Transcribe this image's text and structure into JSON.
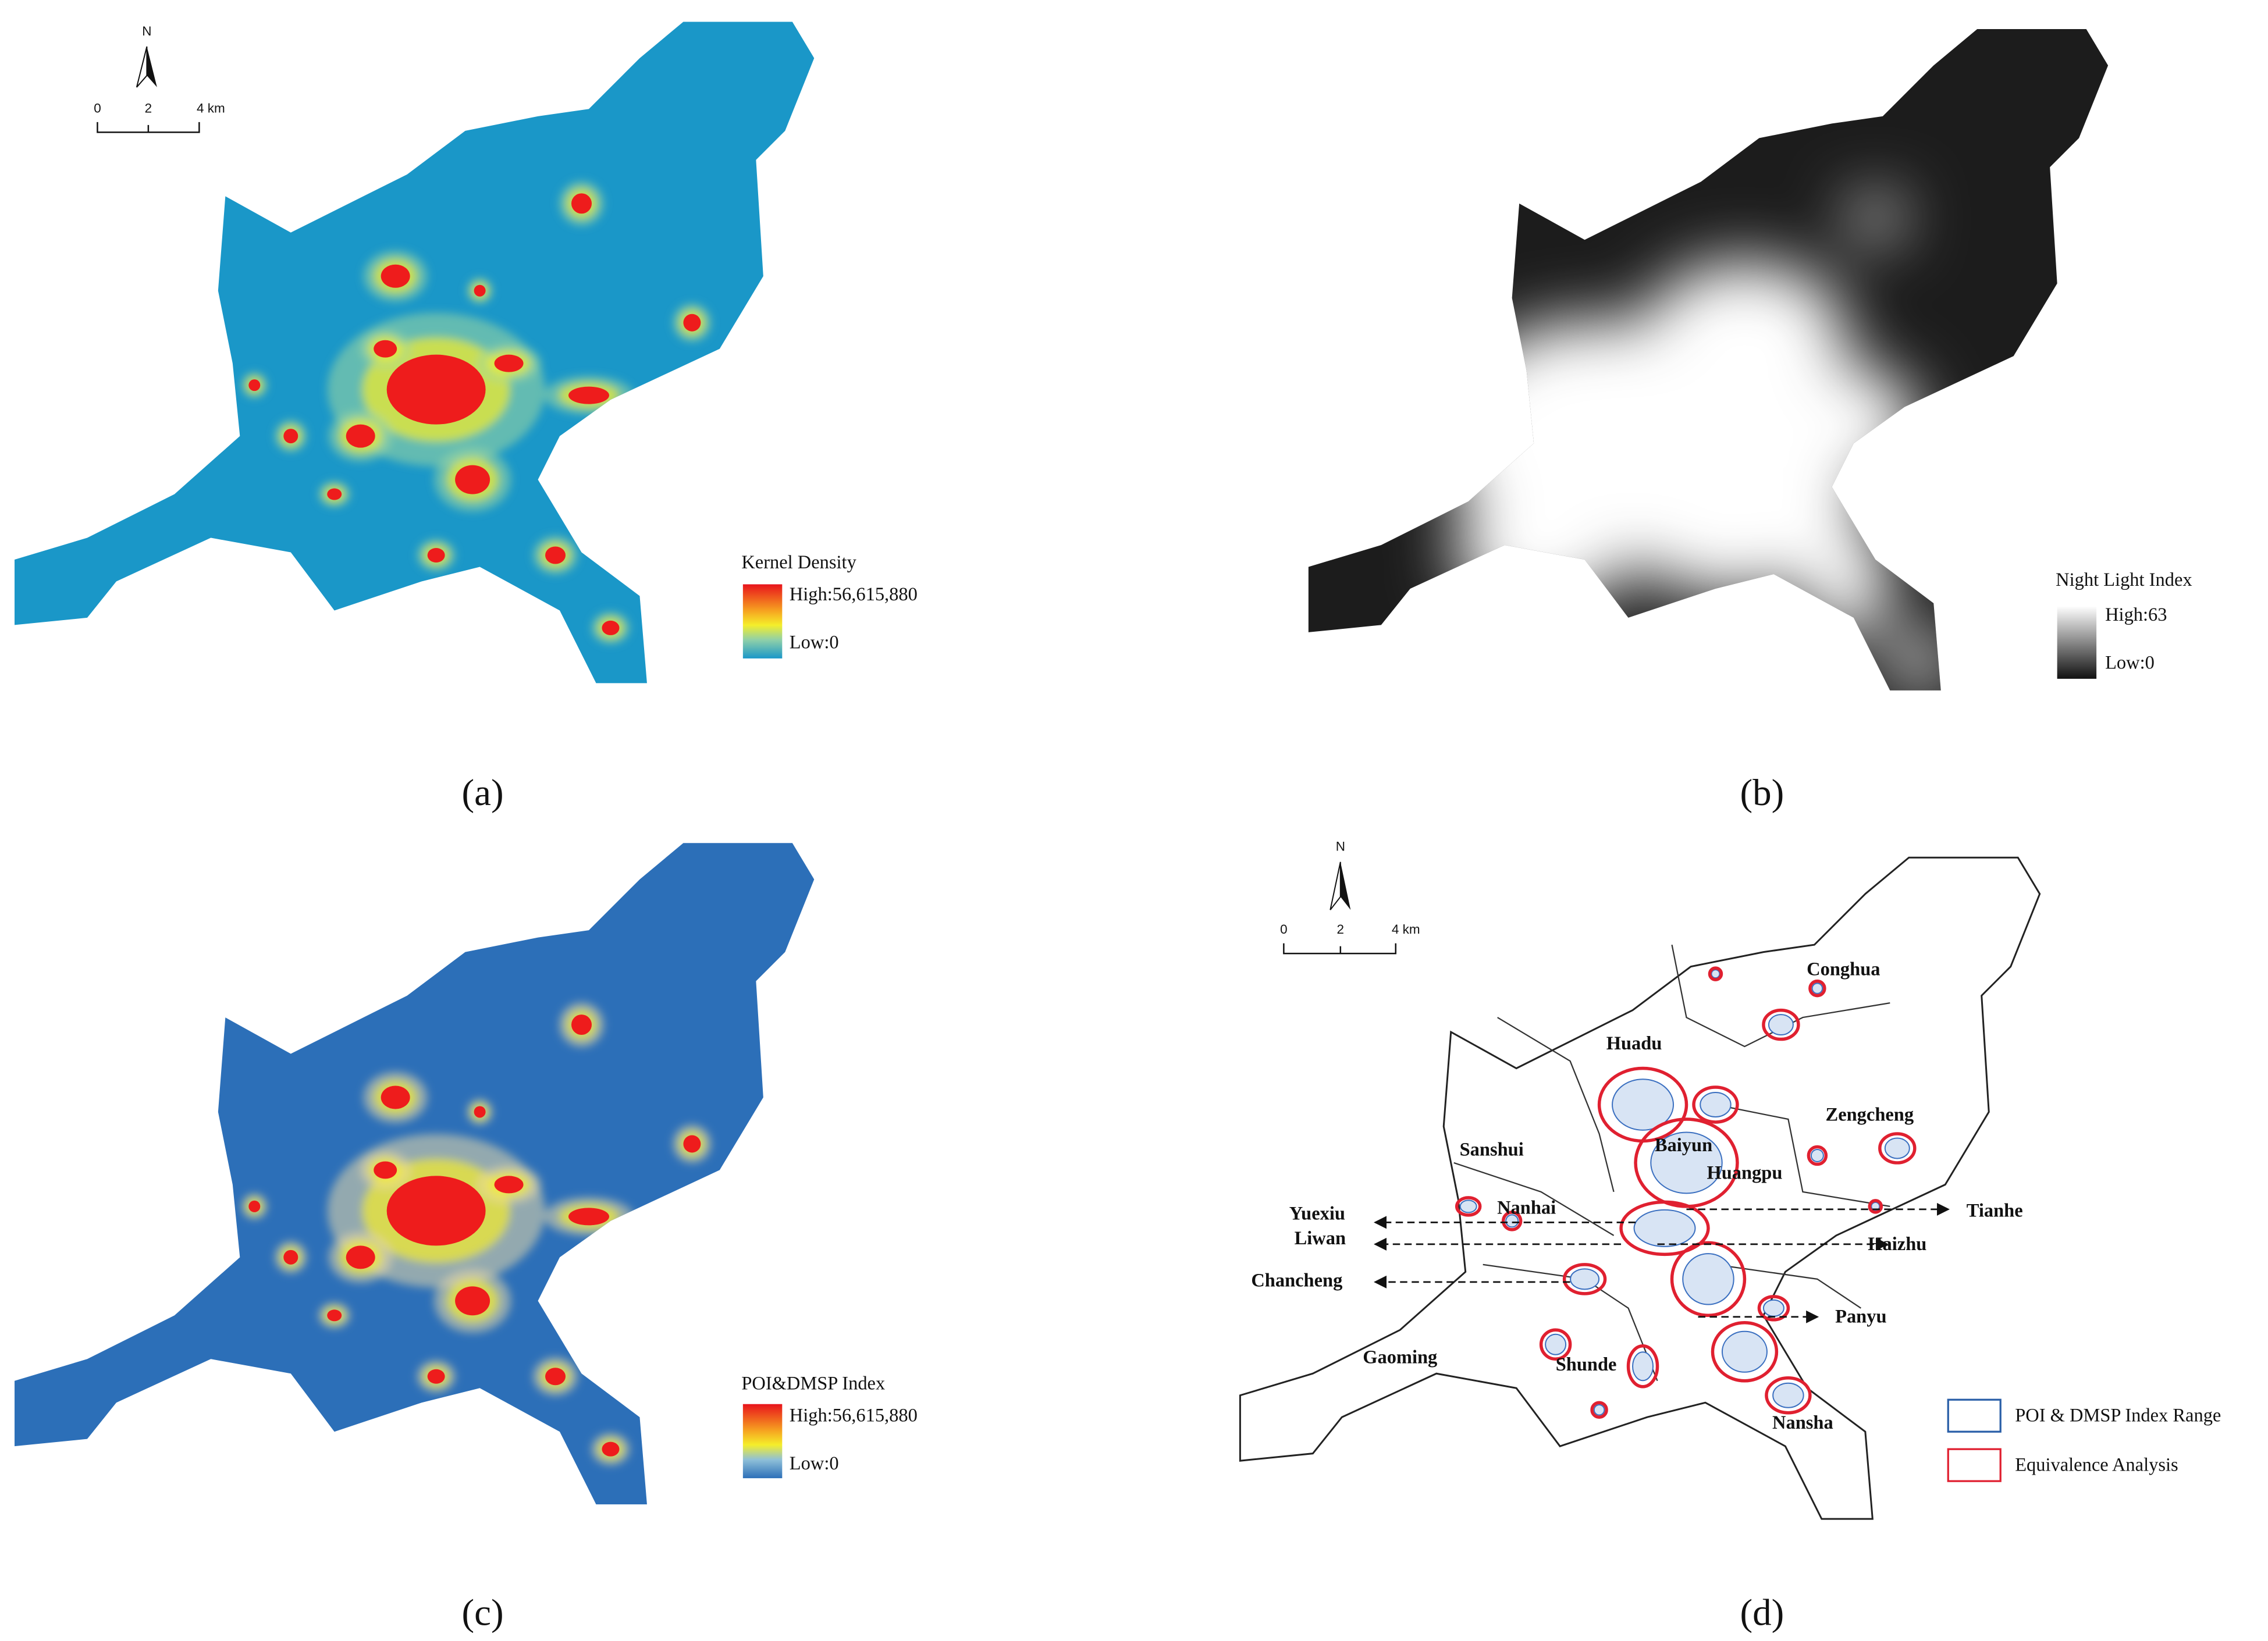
{
  "panels": [
    {
      "caption": "(a)",
      "scale_bar": {
        "north": "N",
        "ticks": [
          "0",
          "2",
          "4 km"
        ]
      },
      "legend": {
        "title": "Kernel Density",
        "high": "High:56,615,880",
        "low": "Low:0"
      }
    },
    {
      "caption": "(b)",
      "legend": {
        "title": "Night Light Index",
        "high": "High:63",
        "low": "Low:0"
      }
    },
    {
      "caption": "(c)",
      "legend": {
        "title": "POI&DMSP Index",
        "high": "High:56,615,880",
        "low": "Low:0"
      }
    },
    {
      "caption": "(d)",
      "scale_bar": {
        "north": "N",
        "ticks": [
          "0",
          "2",
          "4 km"
        ]
      },
      "district_labels": [
        "Conghua",
        "Huadu",
        "Zengcheng",
        "Sanshui",
        "Baiyun",
        "Huangpu",
        "Nanhai",
        "Yuexiu",
        "Tianhe",
        "Liwan",
        "Haizhu",
        "Chancheng",
        "Panyu",
        "Gaoming",
        "Shunde",
        "Nansha"
      ],
      "legend": {
        "items": [
          "POI & DMSP Index Range",
          "Equivalence Analysis"
        ]
      }
    }
  ]
}
